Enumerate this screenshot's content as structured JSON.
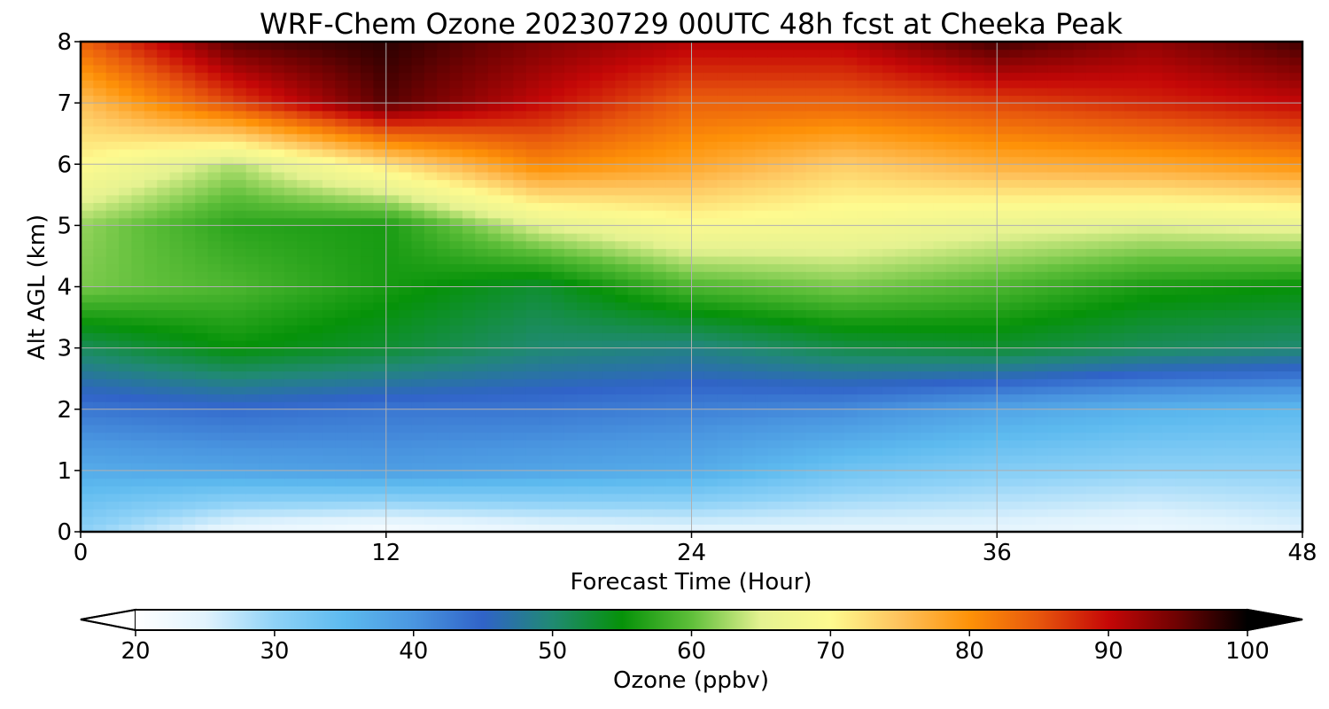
{
  "chart_data": {
    "type": "heatmap",
    "title": "WRF-Chem Ozone  20230729 00UTC 48h fcst at Cheeka Peak",
    "xlabel": "Forecast Time (Hour)",
    "ylabel": "Alt AGL (km)",
    "xlim": [
      0,
      48
    ],
    "ylim": [
      0,
      8
    ],
    "x_ticks": [
      0,
      12,
      24,
      36,
      48
    ],
    "y_ticks": [
      0,
      1,
      2,
      3,
      4,
      5,
      6,
      7,
      8
    ],
    "grid": true,
    "x": [
      0,
      6,
      12,
      18,
      24,
      30,
      36,
      42,
      48
    ],
    "y": [
      0,
      1,
      2,
      3,
      4,
      5,
      6,
      7,
      8
    ],
    "z": [
      [
        30,
        23,
        21,
        23,
        24,
        24,
        24,
        23,
        25
      ],
      [
        37,
        38,
        39,
        38,
        37,
        33,
        31,
        30,
        30
      ],
      [
        43,
        44,
        43,
        43,
        42,
        41,
        38,
        36,
        35
      ],
      [
        51,
        55,
        53,
        50,
        49,
        52,
        53,
        51,
        50
      ],
      [
        61,
        59,
        56,
        53,
        59,
        61,
        59,
        56,
        55
      ],
      [
        62,
        57,
        56,
        65,
        69,
        68,
        66,
        65,
        66
      ],
      [
        70,
        63,
        72,
        81,
        78,
        74,
        77,
        78,
        80
      ],
      [
        75,
        86,
        96,
        90,
        84,
        84,
        86,
        88,
        90
      ],
      [
        84,
        96,
        98,
        94,
        91,
        91,
        97,
        93,
        97
      ]
    ],
    "colorbar": {
      "label": "Ozone  (ppbv)",
      "min": 20,
      "max": 100,
      "ticks": [
        20,
        30,
        40,
        50,
        60,
        70,
        80,
        90,
        100
      ],
      "extend": "both",
      "placement": "bottom",
      "colors": [
        "#ffffff",
        "#e1f3fd",
        "#8fd2f7",
        "#5dbaef",
        "#4a96e0",
        "#3063c8",
        "#208a72",
        "#069209",
        "#5fbf3a",
        "#e5f291",
        "#fefa8f",
        "#fec25c",
        "#fe9208",
        "#e7560d",
        "#c50707",
        "#6d0202",
        "#000000"
      ]
    }
  }
}
